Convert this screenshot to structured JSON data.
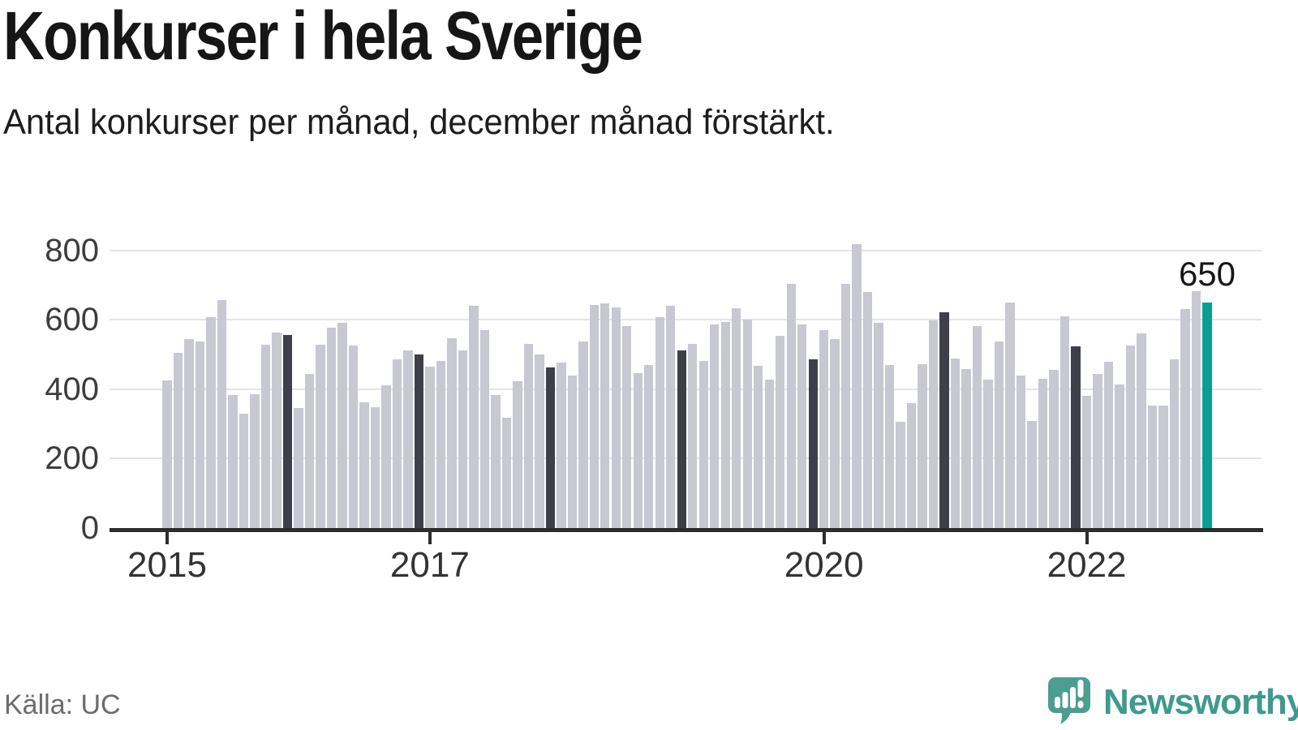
{
  "header": {
    "title": "Konkurser i hela Sverige",
    "subtitle": "Antal konkurser per månad, december månad förstärkt."
  },
  "footer": {
    "source": "Källa: UC",
    "brand": "Newsworthy"
  },
  "colors": {
    "bar": "#c8c8d2",
    "december_bar": "#3f3f4c",
    "highlight_bar": "#0a9e92",
    "gridline": "#e4e4e8",
    "axis": "#2d2d2d",
    "text": "#1d1d1d",
    "muted_text": "#6b6b6b",
    "brand_teal": "#3f9a8d",
    "logo_teal": "#4a9e92"
  },
  "chart_data": {
    "type": "bar",
    "title": "Konkurser i hela Sverige",
    "subtitle": "Antal konkurser per månad, december månad förstärkt.",
    "xlabel": "",
    "ylabel": "",
    "ylim": [
      0,
      850
    ],
    "yticks": [
      0,
      200,
      400,
      600,
      800
    ],
    "xticks": [
      {
        "label": "2015",
        "month_index": 0
      },
      {
        "label": "2017",
        "month_index": 24
      },
      {
        "label": "2020",
        "month_index": 60
      },
      {
        "label": "2022",
        "month_index": 84
      }
    ],
    "grid": true,
    "legend": false,
    "emphasis": {
      "rule": "december bars drawn dark, latest month highlighted teal",
      "last_bar_label": "650"
    },
    "series": [
      {
        "name": "Antal konkurser per månad",
        "years": [
          {
            "year": 2015,
            "values": [
              425,
              505,
              545,
              537,
              608,
              657,
              382,
              330,
              385,
              529,
              563,
              556
            ]
          },
          {
            "year": 2016,
            "values": [
              345,
              444,
              529,
              578,
              590,
              525,
              363,
              349,
              411,
              487,
              511,
              501
            ]
          },
          {
            "year": 2017,
            "values": [
              464,
              481,
              547,
              511,
              639,
              569,
              382,
              318,
              423,
              530,
              499,
              462
            ]
          },
          {
            "year": 2018,
            "values": [
              476,
              440,
              538,
              643,
              646,
              635,
              582,
              447,
              469,
              608,
              639,
              511
            ]
          },
          {
            "year": 2019,
            "values": [
              530,
              482,
              587,
              593,
              634,
              600,
              468,
              427,
              554,
              703,
              587,
              487
            ]
          },
          {
            "year": 2020,
            "values": [
              569,
              544,
              702,
              817,
              680,
              591,
              469,
              306,
              359,
              472,
              598,
              622
            ]
          },
          {
            "year": 2021,
            "values": [
              489,
              458,
              581,
              427,
              537,
              649,
              438,
              308,
              430,
              456,
              610,
              523
            ]
          },
          {
            "year": 2022,
            "values": [
              381,
              444,
              480,
              413,
              525,
              560,
              353,
              353,
              485,
              630,
              681,
              650
            ]
          }
        ]
      }
    ]
  }
}
